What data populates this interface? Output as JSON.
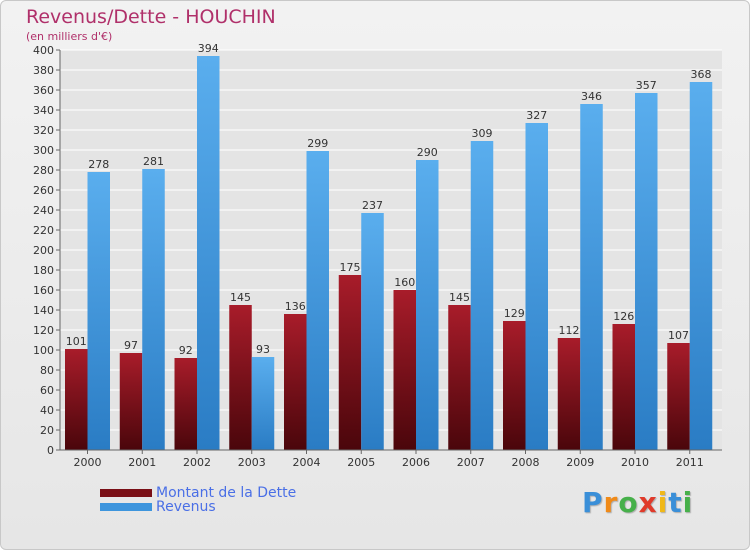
{
  "header": {
    "title": "Revenus/Dette - HOUCHIN",
    "subtitle": "(en milliers d'€)"
  },
  "colors": {
    "dette": "#7a0f16",
    "revenus": "#3d95dd",
    "title": "#b0306a",
    "legend_text": "#4a6fe6"
  },
  "chart_data": {
    "type": "bar",
    "title": "Revenus/Dette - HOUCHIN",
    "ylabel": "(en milliers d'€)",
    "xlabel": "",
    "ylim": [
      0,
      400
    ],
    "ytick_step": 20,
    "grid": true,
    "legend_position": "bottom-left",
    "categories": [
      "2000",
      "2001",
      "2002",
      "2003",
      "2004",
      "2005",
      "2006",
      "2007",
      "2008",
      "2009",
      "2010",
      "2011"
    ],
    "series": [
      {
        "name": "Montant de la Dette",
        "values": [
          101,
          97,
          92,
          145,
          136,
          175,
          160,
          145,
          129,
          112,
          126,
          107
        ]
      },
      {
        "name": "Revenus",
        "values": [
          278,
          281,
          394,
          93,
          299,
          237,
          290,
          309,
          327,
          346,
          357,
          368
        ]
      }
    ]
  },
  "legend": {
    "dette_label": "Montant de la Dette",
    "revenus_label": "Revenus"
  },
  "logo": {
    "letters": [
      "P",
      "r",
      "o",
      "x",
      "i",
      "t",
      "i"
    ],
    "letter_colors": [
      "#3a8fd8",
      "#f08a18",
      "#46b04a",
      "#e03a2a",
      "#f0b818",
      "#3a8fd8",
      "#46b04a"
    ]
  }
}
